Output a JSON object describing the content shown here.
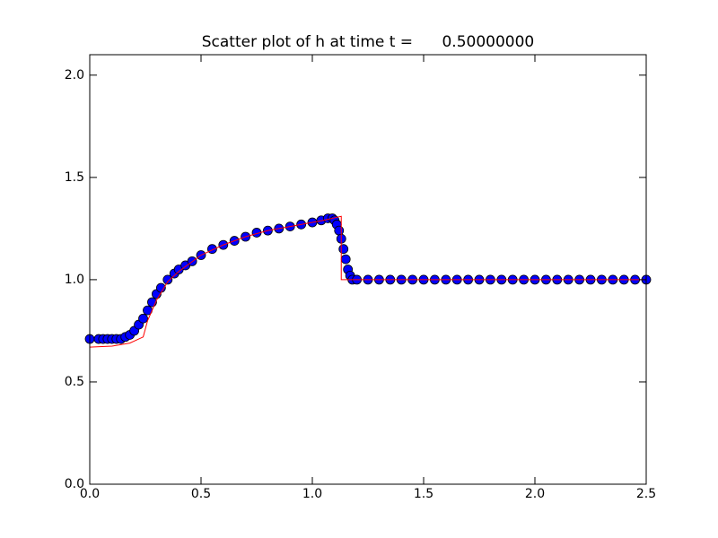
{
  "chart_data": {
    "type": "scatter",
    "title": "Scatter plot of h at time t =      0.50000000",
    "xlim": [
      0,
      2.5
    ],
    "ylim": [
      0,
      2.1
    ],
    "xticks": [
      {
        "value": 0,
        "label": "0.0"
      },
      0.5,
      {
        "value": 1,
        "label": "1.0"
      },
      1.5,
      {
        "value": 2,
        "label": "2.0"
      },
      2.5
    ],
    "yticks": [
      {
        "value": 0,
        "label": "0.0"
      },
      0.5,
      {
        "value": 1,
        "label": "1.0"
      },
      1.5,
      {
        "value": 2,
        "label": "2.0"
      }
    ],
    "series": [
      {
        "type": "scatter",
        "color": "#0000ff",
        "x": [
          0,
          0.04,
          0.06,
          0.08,
          0.1,
          0.12,
          0.14,
          0.16,
          0.18,
          0.2,
          0.22,
          0.24,
          0.26,
          0.28,
          0.3,
          0.32,
          0.35,
          0.38,
          0.4,
          0.43,
          0.46,
          0.5,
          0.55,
          0.6,
          0.65,
          0.7,
          0.75,
          0.8,
          0.85,
          0.9,
          0.95,
          1.0,
          1.04,
          1.07,
          1.09,
          1.1,
          1.11,
          1.12,
          1.13,
          1.14,
          1.15,
          1.16,
          1.17,
          1.18,
          1.2,
          1.25,
          1.3,
          1.35,
          1.4,
          1.45,
          1.5,
          1.55,
          1.6,
          1.65,
          1.7,
          1.75,
          1.8,
          1.85,
          1.9,
          1.95,
          2.0,
          2.05,
          2.1,
          2.15,
          2.2,
          2.25,
          2.3,
          2.35,
          2.4,
          2.45,
          2.5
        ],
        "values": [
          0.71,
          0.71,
          0.71,
          0.71,
          0.71,
          0.71,
          0.71,
          0.72,
          0.73,
          0.75,
          0.78,
          0.81,
          0.85,
          0.89,
          0.93,
          0.96,
          1.0,
          1.03,
          1.05,
          1.07,
          1.09,
          1.12,
          1.15,
          1.17,
          1.19,
          1.21,
          1.23,
          1.24,
          1.25,
          1.26,
          1.27,
          1.28,
          1.29,
          1.3,
          1.3,
          1.29,
          1.27,
          1.24,
          1.2,
          1.15,
          1.1,
          1.05,
          1.02,
          1.0,
          1.0,
          1.0,
          1.0,
          1.0,
          1.0,
          1.0,
          1.0,
          1.0,
          1.0,
          1.0,
          1.0,
          1.0,
          1.0,
          1.0,
          1.0,
          1.0,
          1.0,
          1.0,
          1.0,
          1.0,
          1.0,
          1.0,
          1.0,
          1.0,
          1.0,
          1.0,
          1.0
        ]
      },
      {
        "type": "line",
        "color": "#ff0000",
        "x": [
          0,
          0.1,
          0.18,
          0.24,
          0.26,
          0.3,
          0.35,
          0.4,
          0.5,
          0.6,
          0.7,
          0.8,
          0.9,
          1.0,
          1.05,
          1.13,
          1.13,
          1.2,
          2.5
        ],
        "values": [
          0.67,
          0.675,
          0.69,
          0.72,
          0.8,
          0.9,
          0.99,
          1.04,
          1.12,
          1.17,
          1.21,
          1.24,
          1.26,
          1.28,
          1.29,
          1.31,
          1.0,
          1.0,
          1.0
        ]
      }
    ]
  }
}
